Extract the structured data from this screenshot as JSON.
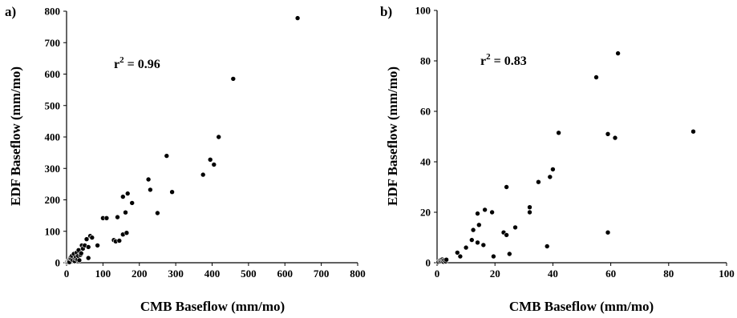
{
  "chart_data": [
    {
      "type": "scatter",
      "panel_label": "a)",
      "annotation": {
        "prefix": "r",
        "superscript": "2",
        "suffix": " = 0.96"
      },
      "xlabel": "CMB Baseflow (mm/mo)",
      "ylabel": "EDF Baseflow (mm/mo)",
      "xlim": [
        0,
        800
      ],
      "ylim": [
        0,
        800
      ],
      "xticks": [
        0,
        100,
        200,
        300,
        400,
        500,
        600,
        700,
        800
      ],
      "yticks": [
        0,
        100,
        200,
        300,
        400,
        500,
        600,
        700,
        800
      ],
      "grid": false,
      "marker_color": "#000000",
      "points": [
        [
          1,
          1
        ],
        [
          2,
          3
        ],
        [
          4,
          2
        ],
        [
          5,
          6
        ],
        [
          6,
          4
        ],
        [
          7,
          8
        ],
        [
          8,
          2
        ],
        [
          10,
          14
        ],
        [
          12,
          18
        ],
        [
          13,
          12
        ],
        [
          15,
          22
        ],
        [
          17,
          8
        ],
        [
          20,
          28
        ],
        [
          22,
          5
        ],
        [
          24,
          14
        ],
        [
          26,
          18
        ],
        [
          28,
          32
        ],
        [
          30,
          10
        ],
        [
          32,
          22
        ],
        [
          33,
          40
        ],
        [
          35,
          8
        ],
        [
          38,
          25
        ],
        [
          40,
          30
        ],
        [
          42,
          55
        ],
        [
          45,
          45
        ],
        [
          50,
          55
        ],
        [
          55,
          75
        ],
        [
          60,
          50
        ],
        [
          60,
          15
        ],
        [
          65,
          85
        ],
        [
          70,
          80
        ],
        [
          85,
          55
        ],
        [
          100,
          142
        ],
        [
          110,
          142
        ],
        [
          130,
          72
        ],
        [
          135,
          68
        ],
        [
          140,
          145
        ],
        [
          145,
          70
        ],
        [
          155,
          90
        ],
        [
          155,
          210
        ],
        [
          162,
          160
        ],
        [
          165,
          95
        ],
        [
          168,
          220
        ],
        [
          180,
          190
        ],
        [
          225,
          265
        ],
        [
          230,
          232
        ],
        [
          250,
          158
        ],
        [
          275,
          340
        ],
        [
          290,
          225
        ],
        [
          375,
          280
        ],
        [
          395,
          328
        ],
        [
          405,
          312
        ],
        [
          418,
          400
        ],
        [
          458,
          585
        ],
        [
          635,
          778
        ]
      ]
    },
    {
      "type": "scatter",
      "panel_label": "b)",
      "annotation": {
        "prefix": "r",
        "superscript": "2",
        "suffix": " = 0.83"
      },
      "xlabel": "CMB Baseflow (mm/mo)",
      "ylabel": "EDF Baseflow (mm/mo)",
      "xlim": [
        0,
        100
      ],
      "ylim": [
        0,
        100
      ],
      "xticks": [
        0,
        20,
        40,
        60,
        80,
        100
      ],
      "yticks": [
        0,
        20,
        40,
        60,
        80,
        100
      ],
      "grid": false,
      "marker_color": "#000000",
      "points": [
        [
          0.5,
          0.3
        ],
        [
          1,
          0.5
        ],
        [
          1.2,
          1
        ],
        [
          1.5,
          0.6
        ],
        [
          1.8,
          1.3
        ],
        [
          2,
          0.8
        ],
        [
          2.2,
          0.4
        ],
        [
          2.5,
          1
        ],
        [
          3,
          0.5
        ],
        [
          3.2,
          1.2
        ],
        [
          7,
          4
        ],
        [
          8,
          2.5
        ],
        [
          10,
          6
        ],
        [
          12,
          9
        ],
        [
          12.5,
          13
        ],
        [
          14,
          8
        ],
        [
          14,
          19.5
        ],
        [
          14.5,
          15
        ],
        [
          16,
          7
        ],
        [
          16.5,
          21
        ],
        [
          19,
          20
        ],
        [
          19.5,
          2.5
        ],
        [
          23,
          12
        ],
        [
          24,
          30
        ],
        [
          24,
          11
        ],
        [
          25,
          3.5
        ],
        [
          27,
          14
        ],
        [
          32,
          22
        ],
        [
          32,
          20
        ],
        [
          35,
          32
        ],
        [
          38,
          6.5
        ],
        [
          39,
          34
        ],
        [
          40,
          37
        ],
        [
          42,
          51.5
        ],
        [
          55,
          73.5
        ],
        [
          59,
          12
        ],
        [
          59,
          51
        ],
        [
          61.5,
          49.5
        ],
        [
          62.5,
          83
        ],
        [
          88.5,
          52
        ]
      ]
    }
  ]
}
